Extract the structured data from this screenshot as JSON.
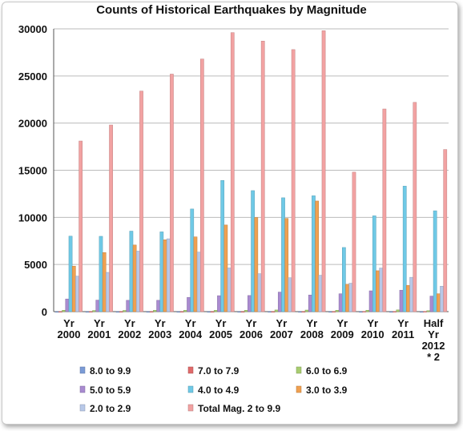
{
  "chart_data": {
    "type": "bar",
    "title": "Counts of Historical Earthquakes by Magnitude",
    "xlabel": "",
    "ylabel": "",
    "ylim": [
      0,
      30000
    ],
    "yticks": [
      "0",
      "5000",
      "10000",
      "15000",
      "20000",
      "25000",
      "30000"
    ],
    "grid": true,
    "legend_position": "bottom",
    "categories": [
      [
        "Yr",
        "2000"
      ],
      [
        "Yr",
        "2001"
      ],
      [
        "Yr",
        "2002"
      ],
      [
        "Yr",
        "2003"
      ],
      [
        "Yr",
        "2004"
      ],
      [
        "Yr",
        "2005"
      ],
      [
        "Yr",
        "2006"
      ],
      [
        "Yr",
        "2007"
      ],
      [
        "Yr",
        "2008"
      ],
      [
        "Yr",
        "2009"
      ],
      [
        "Yr",
        "2010"
      ],
      [
        "Yr",
        "2011"
      ],
      [
        "Half",
        "Yr",
        "2012",
        "* 2"
      ]
    ],
    "series": [
      {
        "name": "8.0 to 9.9",
        "color": "#7b9bd6",
        "values": [
          1,
          1,
          0,
          1,
          2,
          1,
          2,
          4,
          0,
          1,
          1,
          1,
          1
        ]
      },
      {
        "name": "7.0 to 7.9",
        "color": "#e06a6a",
        "values": [
          14,
          15,
          13,
          14,
          14,
          10,
          9,
          14,
          12,
          16,
          23,
          19,
          22
        ]
      },
      {
        "name": "6.0 to 6.9",
        "color": "#a8cc70",
        "values": [
          146,
          121,
          127,
          140,
          141,
          140,
          142,
          178,
          168,
          144,
          150,
          185,
          100
        ]
      },
      {
        "name": "5.0 to 5.9",
        "color": "#a98bd0",
        "values": [
          1344,
          1224,
          1201,
          1203,
          1515,
          1693,
          1712,
          2074,
          1768,
          1896,
          2209,
          2276,
          1650
        ]
      },
      {
        "name": "4.0 to 4.9",
        "color": "#6fc9e6",
        "values": [
          8008,
          7991,
          8541,
          8462,
          10888,
          13917,
          12838,
          12078,
          12291,
          6805,
          10164,
          13315,
          10700
        ]
      },
      {
        "name": "3.0 to 3.9",
        "color": "#f0a050",
        "values": [
          4827,
          6266,
          7068,
          7624,
          7932,
          9191,
          9990,
          9889,
          11735,
          2905,
          4341,
          2791,
          1900
        ]
      },
      {
        "name": "2.0 to 2.9",
        "color": "#b8c8e8",
        "values": [
          3765,
          4164,
          6419,
          7727,
          6316,
          4636,
          4027,
          3597,
          3860,
          3014,
          4626,
          3643,
          2700
        ]
      },
      {
        "name": "Total Mag. 2 to 9.9",
        "color": "#f2a2a2",
        "values": [
          18100,
          19800,
          23400,
          25200,
          26800,
          29600,
          28700,
          27800,
          29800,
          14800,
          21500,
          22200,
          17200
        ]
      }
    ]
  }
}
